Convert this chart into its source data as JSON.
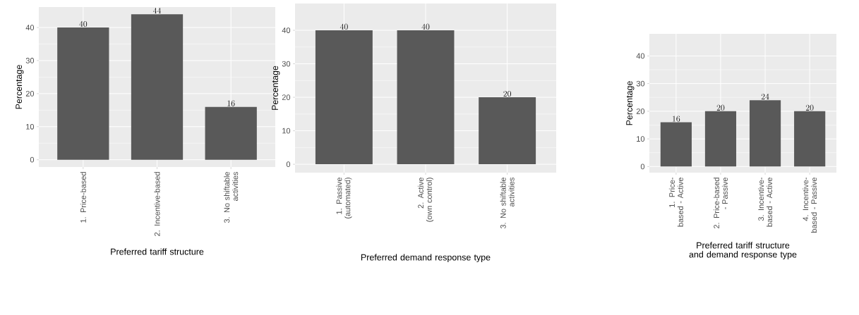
{
  "chart_data": [
    {
      "type": "bar",
      "categories": [
        "1. Price-based",
        "2. Incentive-based",
        "3. No shiftable activities"
      ],
      "values": [
        40,
        44,
        16
      ],
      "color": "#595959",
      "ylim": [
        -2.2,
        46.2
      ],
      "yticks": [
        0,
        10,
        20,
        30,
        40
      ],
      "ylabel": "Percentage",
      "xlabel": "Preferred tariff structure",
      "data_labels": true,
      "grid": true
    },
    {
      "type": "bar",
      "categories": [
        "1. Passive (automated)",
        "2. Active (own control)",
        "3. No shiftable activities"
      ],
      "values": [
        40,
        40,
        20
      ],
      "color": "#595959",
      "ylim": [
        -2.5,
        48
      ],
      "yticks": [
        0,
        10,
        20,
        30,
        40
      ],
      "ylabel": "Percentage",
      "xlabel": "Preferred demand response type",
      "data_labels": true,
      "grid": true
    },
    {
      "type": "bar",
      "categories": [
        "1. Price-based - Active",
        "2. Price-based - Passive",
        "3. Incentive-based - Active",
        "4. Incentive-based - Passive"
      ],
      "values": [
        16,
        20,
        24,
        20
      ],
      "color": "#595959",
      "ylim": [
        -2.2,
        48
      ],
      "yticks": [
        0,
        10,
        20,
        30,
        40
      ],
      "ylabel": "Percentage",
      "xlabel": "Preferred tariff structure and demand response type",
      "data_labels": true,
      "grid": true
    }
  ]
}
